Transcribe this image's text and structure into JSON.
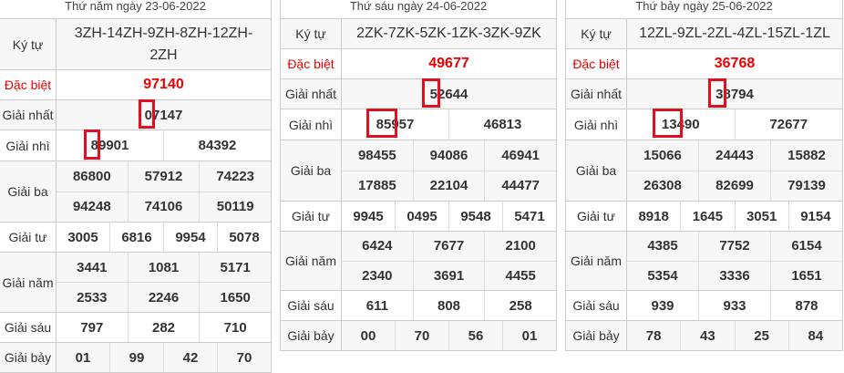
{
  "highlight_color": "#e01020",
  "special_color": "#ee0000",
  "panels": [
    {
      "date": "Thứ năm ngày 23-06-2022",
      "rows": [
        {
          "label": "Ký tự",
          "values": [
            [
              "3ZH-14ZH-9ZH-8ZH-12ZH-2ZH"
            ]
          ]
        },
        {
          "label": "Đặc biệt",
          "values": [
            [
              "97140"
            ]
          ]
        },
        {
          "label": "Giải nhất",
          "values": [
            [
              "07147"
            ]
          ]
        },
        {
          "label": "Giải nhì",
          "values": [
            [
              "89901",
              "84392"
            ]
          ]
        },
        {
          "label": "Giải ba",
          "values": [
            [
              "86800",
              "57912",
              "74223"
            ],
            [
              "94248",
              "74106",
              "50119"
            ]
          ]
        },
        {
          "label": "Giải tư",
          "values": [
            [
              "3005",
              "6816",
              "9954",
              "5078"
            ]
          ]
        },
        {
          "label": "Giải năm",
          "values": [
            [
              "3441",
              "1081",
              "5171"
            ],
            [
              "2533",
              "2246",
              "1650"
            ]
          ]
        },
        {
          "label": "Giải sáu",
          "values": [
            [
              "797",
              "282",
              "710"
            ]
          ]
        },
        {
          "label": "Giải bảy",
          "values": [
            [
              "01",
              "99",
              "42",
              "70"
            ]
          ]
        }
      ]
    },
    {
      "date": "Thứ sáu ngày 24-06-2022",
      "rows": [
        {
          "label": "Ký tự",
          "values": [
            [
              "2ZK-7ZK-5ZK-1ZK-3ZK-9ZK"
            ]
          ]
        },
        {
          "label": "Đặc biệt",
          "values": [
            [
              "49677"
            ]
          ]
        },
        {
          "label": "Giải nhất",
          "values": [
            [
              "52644"
            ]
          ]
        },
        {
          "label": "Giải nhì",
          "values": [
            [
              "85957",
              "46813"
            ]
          ]
        },
        {
          "label": "Giải ba",
          "values": [
            [
              "98455",
              "94086",
              "46941"
            ],
            [
              "17885",
              "22104",
              "44477"
            ]
          ]
        },
        {
          "label": "Giải tư",
          "values": [
            [
              "9945",
              "0495",
              "9548",
              "5471"
            ]
          ]
        },
        {
          "label": "Giải năm",
          "values": [
            [
              "6424",
              "7677",
              "2100"
            ],
            [
              "2340",
              "3691",
              "4455"
            ]
          ]
        },
        {
          "label": "Giải sáu",
          "values": [
            [
              "611",
              "808",
              "258"
            ]
          ]
        },
        {
          "label": "Giải bảy",
          "values": [
            [
              "00",
              "70",
              "56",
              "01"
            ]
          ]
        }
      ]
    },
    {
      "date": "Thứ bảy ngày 25-06-2022",
      "rows": [
        {
          "label": "Ký tự",
          "values": [
            [
              "12ZL-9ZL-2ZL-4ZL-15ZL-1ZL"
            ]
          ]
        },
        {
          "label": "Đặc biệt",
          "values": [
            [
              "36768"
            ]
          ]
        },
        {
          "label": "Giải nhất",
          "values": [
            [
              "38794"
            ]
          ]
        },
        {
          "label": "Giải nhì",
          "values": [
            [
              "13490",
              "72677"
            ]
          ]
        },
        {
          "label": "Giải ba",
          "values": [
            [
              "15066",
              "24443",
              "15882"
            ],
            [
              "26308",
              "82699",
              "79139"
            ]
          ]
        },
        {
          "label": "Giải tư",
          "values": [
            [
              "8918",
              "1645",
              "3051",
              "9154"
            ]
          ]
        },
        {
          "label": "Giải năm",
          "values": [
            [
              "4385",
              "7752",
              "6154"
            ],
            [
              "5354",
              "3336",
              "1651"
            ]
          ]
        },
        {
          "label": "Giải sáu",
          "values": [
            [
              "939",
              "933",
              "878"
            ]
          ]
        },
        {
          "label": "Giải bảy",
          "values": [
            [
              "78",
              "43",
              "25",
              "84"
            ]
          ]
        }
      ]
    }
  ]
}
